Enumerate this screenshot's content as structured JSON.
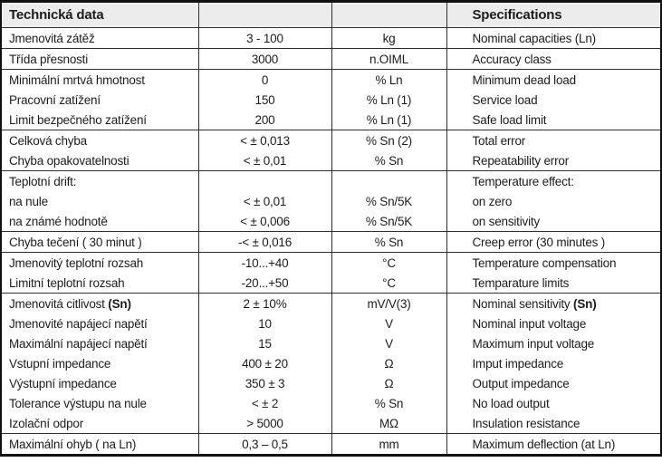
{
  "header": {
    "czech": "Technická data",
    "english": "Specifications"
  },
  "colors": {
    "header_bg": "#ececec",
    "line": "#2f2f2f",
    "outer_border": "#111111",
    "text": "#1c1c1c"
  },
  "rows": [
    {
      "czech": "Jmenovitá zátěž",
      "value": "3 - 100",
      "unit": "kg",
      "english": "Nominal capacities (Ln)",
      "group_end": true
    },
    {
      "czech": "Třída přesnosti",
      "value": "3000",
      "unit": "n.OIML",
      "english": "Accuracy class",
      "group_end": true
    },
    {
      "czech": "Minimální mrtvá hmotnost",
      "value": "0",
      "unit": "% Ln",
      "english": "Minimum dead load",
      "group_end": false
    },
    {
      "czech": "Pracovní zatížení",
      "value": "150",
      "unit": "% Ln (1)",
      "english": "Service load",
      "group_end": false
    },
    {
      "czech": "Limit bezpečného zatížení",
      "value": "200",
      "unit": "% Ln (1)",
      "english": "Safe load limit",
      "group_end": true
    },
    {
      "czech": "Celková chyba",
      "value": "< ± 0,013",
      "unit": "% Sn (2)",
      "english": "Total error",
      "group_end": false
    },
    {
      "czech": "Chyba opakovatelnosti",
      "value": "< ± 0,01",
      "unit": "% Sn",
      "english": "Repeatability error",
      "group_end": true
    },
    {
      "czech": "Teplotní drift:",
      "value": "",
      "unit": "",
      "english": "Temperature effect:",
      "group_end": false
    },
    {
      "czech": "na nule",
      "value": "< ± 0,01",
      "unit": "% Sn/5K",
      "english": "on zero",
      "group_end": false
    },
    {
      "czech": "na známé hodnotě",
      "value": "< ± 0,006",
      "unit": "% Sn/5K",
      "english": "on sensitivity",
      "group_end": true
    },
    {
      "czech": "Chyba tečení ( 30 minut )",
      "value": "-< ± 0,016",
      "unit": "% Sn",
      "english": "Creep error (30 minutes )",
      "group_end": true
    },
    {
      "czech": "Jmenovitý teplotní rozsah",
      "value": "-10...+40",
      "unit": "°C",
      "english": "Temperature compensation",
      "group_end": false
    },
    {
      "czech": "Limitní teplotní rozsah",
      "value": "-20...+50",
      "unit": "°C",
      "english": "Temparature limits",
      "group_end": true
    },
    {
      "czech": "Jmenovitá citlivost ",
      "czech_bold": "(Sn)",
      "value": "2 ± 10%",
      "unit": "mV/V(3)",
      "english": "Nominal sensitivity ",
      "english_bold": "(Sn)",
      "group_end": false
    },
    {
      "czech": "Jmenovité napájecí napětí",
      "value": "10",
      "unit": "V",
      "english": "Nominal input voltage",
      "group_end": false
    },
    {
      "czech": "Maximální napájecí napětí",
      "value": "15",
      "unit": "V",
      "english": "Maximum input voltage",
      "group_end": false
    },
    {
      "czech": "Vstupní impedance",
      "value": "400 ± 20",
      "unit": "Ω",
      "english": "Imput impedance",
      "group_end": false
    },
    {
      "czech": "Výstupní impedance",
      "value": "350 ± 3",
      "unit": "Ω",
      "english": "Output impedance",
      "group_end": false
    },
    {
      "czech": "Tolerance výstupu na nule",
      "value": "< ± 2",
      "unit": "% Sn",
      "english": "No load output",
      "group_end": false
    },
    {
      "czech": "Izolační odpor",
      "value": "> 5000",
      "unit": "MΩ",
      "english": "Insulation resistance",
      "group_end": true
    },
    {
      "czech": "Maximální ohyb ( na Ln)",
      "value": "0,3 – 0,5",
      "unit": "mm",
      "english": "Maximum deflection (at Ln)",
      "group_end": false
    }
  ]
}
